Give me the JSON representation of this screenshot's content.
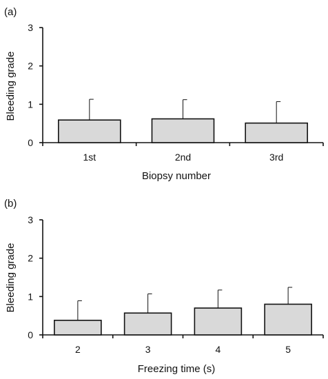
{
  "chart_data": [
    {
      "type": "bar",
      "panel_label": "(a)",
      "categories": [
        "1st",
        "2nd",
        "3rd"
      ],
      "values": [
        0.59,
        0.62,
        0.51
      ],
      "error_upper": [
        1.13,
        1.12,
        1.07
      ],
      "xlabel": "Biopsy number",
      "ylabel": "Bleeding grade",
      "ylim": [
        0,
        3
      ],
      "yticks": [
        "0",
        "1",
        "2",
        "3"
      ],
      "bar_color": "#d9d9d9",
      "grid": false
    },
    {
      "type": "bar",
      "panel_label": "(b)",
      "categories": [
        "2",
        "3",
        "4",
        "5"
      ],
      "values": [
        0.38,
        0.57,
        0.7,
        0.8
      ],
      "error_upper": [
        0.89,
        1.07,
        1.17,
        1.24
      ],
      "xlabel": "Freezing time (s)",
      "ylabel": "Bleeding grade",
      "ylim": [
        0,
        3
      ],
      "yticks": [
        "0",
        "1",
        "2",
        "3"
      ],
      "bar_color": "#d9d9d9",
      "grid": false
    }
  ]
}
